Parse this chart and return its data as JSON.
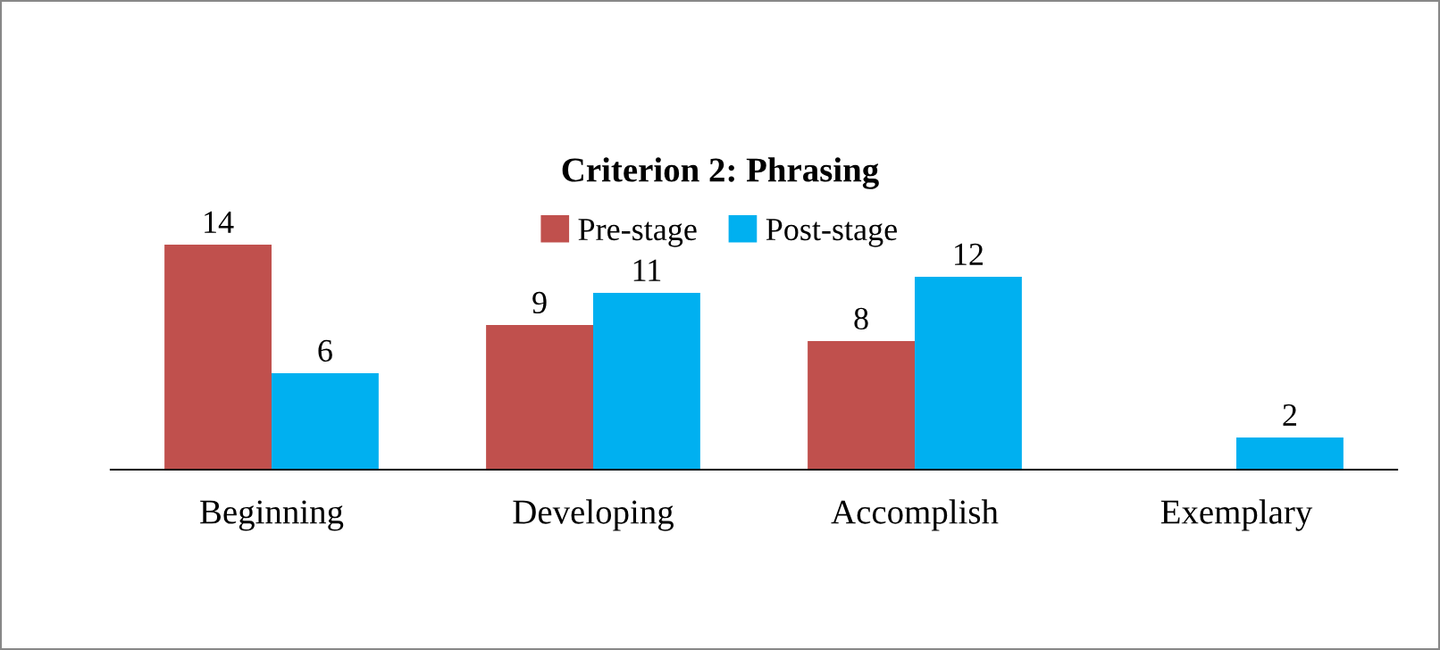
{
  "chart_data": {
    "type": "bar",
    "title": "Criterion 2: Phrasing",
    "categories": [
      "Beginning",
      "Developing",
      "Accomplish",
      "Exemplary"
    ],
    "series": [
      {
        "name": "Pre-stage",
        "color": "#c0504d",
        "values": [
          14,
          9,
          8,
          null
        ]
      },
      {
        "name": "Post-stage",
        "color": "#00b0f0",
        "values": [
          6,
          11,
          12,
          2
        ]
      }
    ],
    "data_labels": true,
    "legend": "top",
    "grid": false
  }
}
